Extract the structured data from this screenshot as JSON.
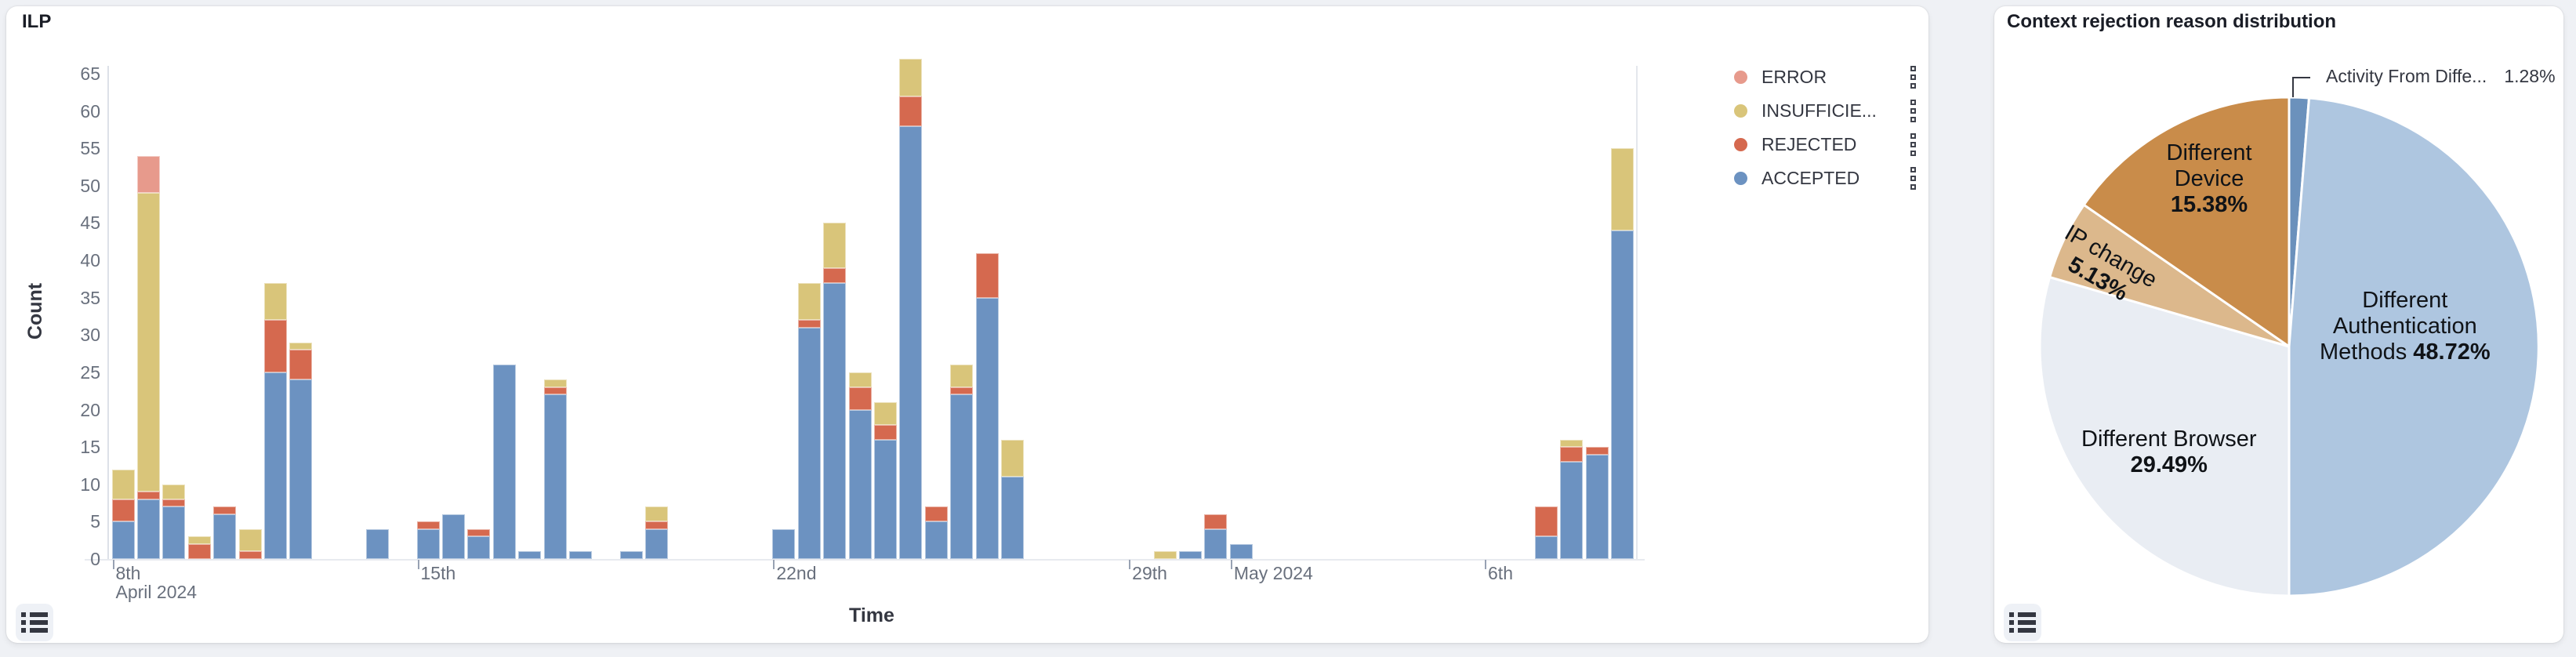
{
  "page": {
    "background": "#eff1f5"
  },
  "left_card": {
    "title": "ILP",
    "x_axis_title": "Time",
    "y_axis_title": "Count",
    "legend": [
      {
        "label": "ERROR",
        "color": "#E79A8C"
      },
      {
        "label": "INSUFFICIE...",
        "color": "#D9C57A"
      },
      {
        "label": "REJECTED",
        "color": "#D5694F"
      },
      {
        "label": "ACCEPTED",
        "color": "#6C92C1"
      }
    ]
  },
  "right_card": {
    "title": "Context rejection reason distribution",
    "callout": {
      "label": "Activity From Diffe...",
      "value": "1.28%"
    }
  },
  "chart_data": [
    {
      "type": "bar",
      "stacked": true,
      "title": "ILP",
      "xlabel": "Time",
      "ylabel": "Count",
      "ylim": [
        0,
        65
      ],
      "y_tick_step": 5,
      "grid": false,
      "legend_position": "right",
      "x_slot_count": 60,
      "x_ticks": [
        {
          "slot": 0,
          "lines": [
            "8th",
            "April 2024"
          ]
        },
        {
          "slot": 12,
          "lines": [
            "15th"
          ]
        },
        {
          "slot": 26,
          "lines": [
            "22nd"
          ]
        },
        {
          "slot": 40,
          "lines": [
            "29th"
          ]
        },
        {
          "slot": 44,
          "lines": [
            "May 2024"
          ]
        },
        {
          "slot": 54,
          "lines": [
            "6th"
          ]
        }
      ],
      "stack_order": [
        "ACCEPTED",
        "REJECTED",
        "INSUFFICIENT",
        "ERROR"
      ],
      "series_colors": {
        "ACCEPTED": "#6C92C1",
        "REJECTED": "#D5694F",
        "INSUFFICIENT": "#D9C57A",
        "ERROR": "#E79A8C"
      },
      "bars": [
        {
          "slot": 0,
          "v": [
            5,
            3,
            4,
            0
          ]
        },
        {
          "slot": 1,
          "v": [
            8,
            1,
            40,
            5
          ]
        },
        {
          "slot": 2,
          "v": [
            7,
            1,
            2,
            0
          ]
        },
        {
          "slot": 3,
          "v": [
            0,
            2,
            1,
            0
          ]
        },
        {
          "slot": 4,
          "v": [
            6,
            1,
            0,
            0
          ]
        },
        {
          "slot": 5,
          "v": [
            0,
            1,
            3,
            0
          ]
        },
        {
          "slot": 6,
          "v": [
            25,
            7,
            5,
            0
          ]
        },
        {
          "slot": 7,
          "v": [
            24,
            4,
            1,
            0
          ]
        },
        {
          "slot": 10,
          "v": [
            4,
            0,
            0,
            0
          ]
        },
        {
          "slot": 12,
          "v": [
            4,
            1,
            0,
            0
          ]
        },
        {
          "slot": 13,
          "v": [
            6,
            0,
            0,
            0
          ]
        },
        {
          "slot": 14,
          "v": [
            3,
            1,
            0,
            0
          ]
        },
        {
          "slot": 15,
          "v": [
            26,
            0,
            0,
            0
          ]
        },
        {
          "slot": 16,
          "v": [
            1,
            0,
            0,
            0
          ]
        },
        {
          "slot": 17,
          "v": [
            22,
            1,
            1,
            0
          ]
        },
        {
          "slot": 18,
          "v": [
            1,
            0,
            0,
            0
          ]
        },
        {
          "slot": 20,
          "v": [
            1,
            0,
            0,
            0
          ]
        },
        {
          "slot": 21,
          "v": [
            4,
            1,
            2,
            0
          ]
        },
        {
          "slot": 26,
          "v": [
            4,
            0,
            0,
            0
          ]
        },
        {
          "slot": 27,
          "v": [
            31,
            1,
            5,
            0
          ]
        },
        {
          "slot": 28,
          "v": [
            37,
            2,
            6,
            0
          ]
        },
        {
          "slot": 29,
          "v": [
            20,
            3,
            2,
            0
          ]
        },
        {
          "slot": 30,
          "v": [
            16,
            2,
            3,
            0
          ]
        },
        {
          "slot": 31,
          "v": [
            58,
            4,
            5,
            0
          ]
        },
        {
          "slot": 32,
          "v": [
            5,
            2,
            0,
            0
          ]
        },
        {
          "slot": 33,
          "v": [
            22,
            1,
            3,
            0
          ]
        },
        {
          "slot": 34,
          "v": [
            35,
            6,
            0,
            0
          ]
        },
        {
          "slot": 35,
          "v": [
            11,
            0,
            5,
            0
          ]
        },
        {
          "slot": 41,
          "v": [
            0,
            0,
            1,
            0
          ]
        },
        {
          "slot": 42,
          "v": [
            1,
            0,
            0,
            0
          ]
        },
        {
          "slot": 43,
          "v": [
            4,
            2,
            0,
            0
          ]
        },
        {
          "slot": 44,
          "v": [
            2,
            0,
            0,
            0
          ]
        },
        {
          "slot": 56,
          "v": [
            3,
            4,
            0,
            0
          ]
        },
        {
          "slot": 57,
          "v": [
            13,
            2,
            1,
            0
          ]
        },
        {
          "slot": 58,
          "v": [
            14,
            1,
            0,
            0
          ]
        },
        {
          "slot": 59,
          "v": [
            44,
            0,
            11,
            0
          ]
        }
      ]
    },
    {
      "type": "pie",
      "title": "Context rejection reason distribution",
      "start_angle": "top",
      "direction": "clockwise",
      "slices": [
        {
          "name": "Activity From Diffe...",
          "pct": 1.28,
          "color": "#6B91BC",
          "label_style": "callout"
        },
        {
          "name": "Different Authentication Methods",
          "pct": 48.72,
          "color": "#AEC6E0",
          "label_lines": [
            [
              {
                "t": "Different"
              }
            ],
            [
              {
                "t": "Authentication"
              }
            ],
            [
              {
                "t": "Methods "
              },
              {
                "t": "48.72%",
                "b": true
              }
            ]
          ]
        },
        {
          "name": "Different Browser",
          "pct": 29.49,
          "color": "#E9EDF3",
          "label_lines": [
            [
              {
                "t": "Different Browser"
              }
            ],
            [
              {
                "t": "29.49%",
                "b": true
              }
            ]
          ]
        },
        {
          "name": "IP change",
          "pct": 5.13,
          "color": "#DCB88C",
          "label_lines": [
            [
              {
                "t": "IP change"
              }
            ],
            [
              {
                "t": "5.13%",
                "b": true
              }
            ]
          ]
        },
        {
          "name": "Different Device",
          "pct": 15.38,
          "color": "#C98C4A",
          "label_lines": [
            [
              {
                "t": "Different"
              }
            ],
            [
              {
                "t": "Device"
              }
            ],
            [
              {
                "t": "15.38%",
                "b": true
              }
            ]
          ]
        }
      ]
    }
  ]
}
